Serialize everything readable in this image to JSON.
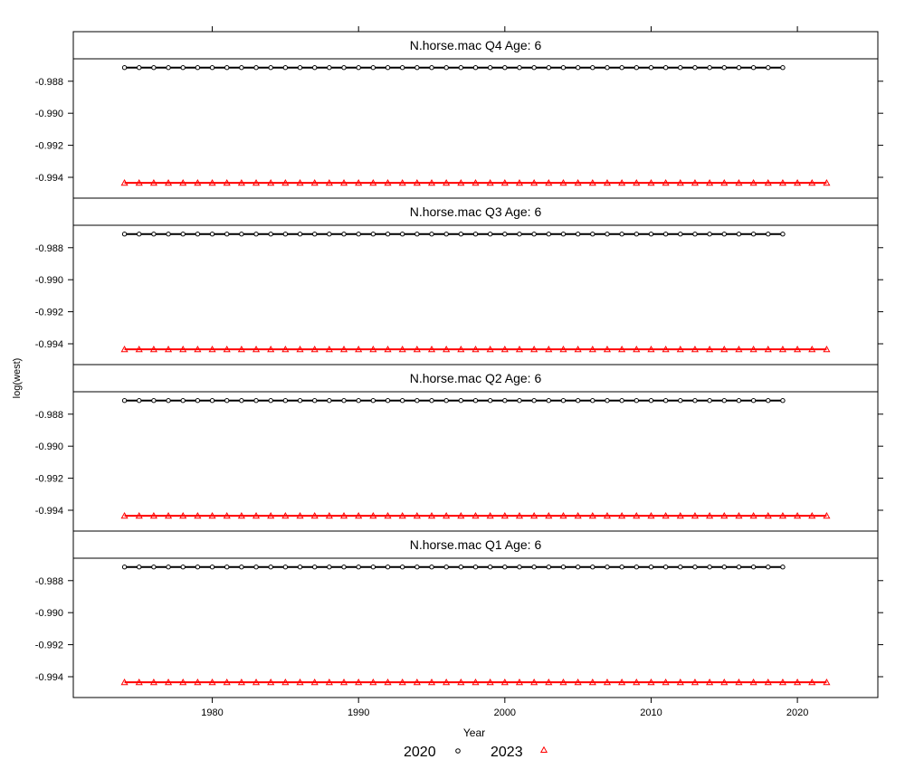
{
  "chart_data": {
    "type": "line",
    "xlabel": "Year",
    "ylabel": "log(west)",
    "xlim": [
      1970.5,
      2025.5
    ],
    "ylim": [
      -0.9953,
      -0.9866
    ],
    "x_ticks": [
      1980,
      1990,
      2000,
      2010,
      2020
    ],
    "y_ticks": [
      -0.994,
      -0.992,
      -0.99,
      -0.988
    ],
    "y_tick_labels": [
      "-0.994",
      "-0.992",
      "-0.990",
      "-0.988"
    ],
    "x_tick_labels": [
      "1980",
      "1990",
      "2000",
      "2010",
      "2020"
    ],
    "legend": {
      "placement": "bottom",
      "entries": [
        {
          "label": "2020",
          "color": "#000000",
          "marker": "circle"
        },
        {
          "label": "2023",
          "color": "#ff0000",
          "marker": "triangle"
        }
      ]
    },
    "panels": [
      {
        "title": "N.horse.mac Q4 Age: 6",
        "series": [
          {
            "name": "2020",
            "color": "#000000",
            "marker": "circle",
            "x_start": 1974,
            "x_end": 2019,
            "value": -0.98715
          },
          {
            "name": "2023",
            "color": "#ff0000",
            "marker": "triangle",
            "x_start": 1974,
            "x_end": 2022,
            "value": -0.99435
          }
        ]
      },
      {
        "title": "N.horse.mac Q3 Age: 6",
        "series": [
          {
            "name": "2020",
            "color": "#000000",
            "marker": "circle",
            "x_start": 1974,
            "x_end": 2019,
            "value": -0.98715
          },
          {
            "name": "2023",
            "color": "#ff0000",
            "marker": "triangle",
            "x_start": 1974,
            "x_end": 2022,
            "value": -0.99435
          }
        ]
      },
      {
        "title": "N.horse.mac Q2 Age: 6",
        "series": [
          {
            "name": "2020",
            "color": "#000000",
            "marker": "circle",
            "x_start": 1974,
            "x_end": 2019,
            "value": -0.98715
          },
          {
            "name": "2023",
            "color": "#ff0000",
            "marker": "triangle",
            "x_start": 1974,
            "x_end": 2022,
            "value": -0.99435
          }
        ]
      },
      {
        "title": "N.horse.mac Q1 Age: 6",
        "series": [
          {
            "name": "2020",
            "color": "#000000",
            "marker": "circle",
            "x_start": 1974,
            "x_end": 2019,
            "value": -0.98715
          },
          {
            "name": "2023",
            "color": "#ff0000",
            "marker": "triangle",
            "x_start": 1974,
            "x_end": 2022,
            "value": -0.99435
          }
        ]
      }
    ]
  }
}
